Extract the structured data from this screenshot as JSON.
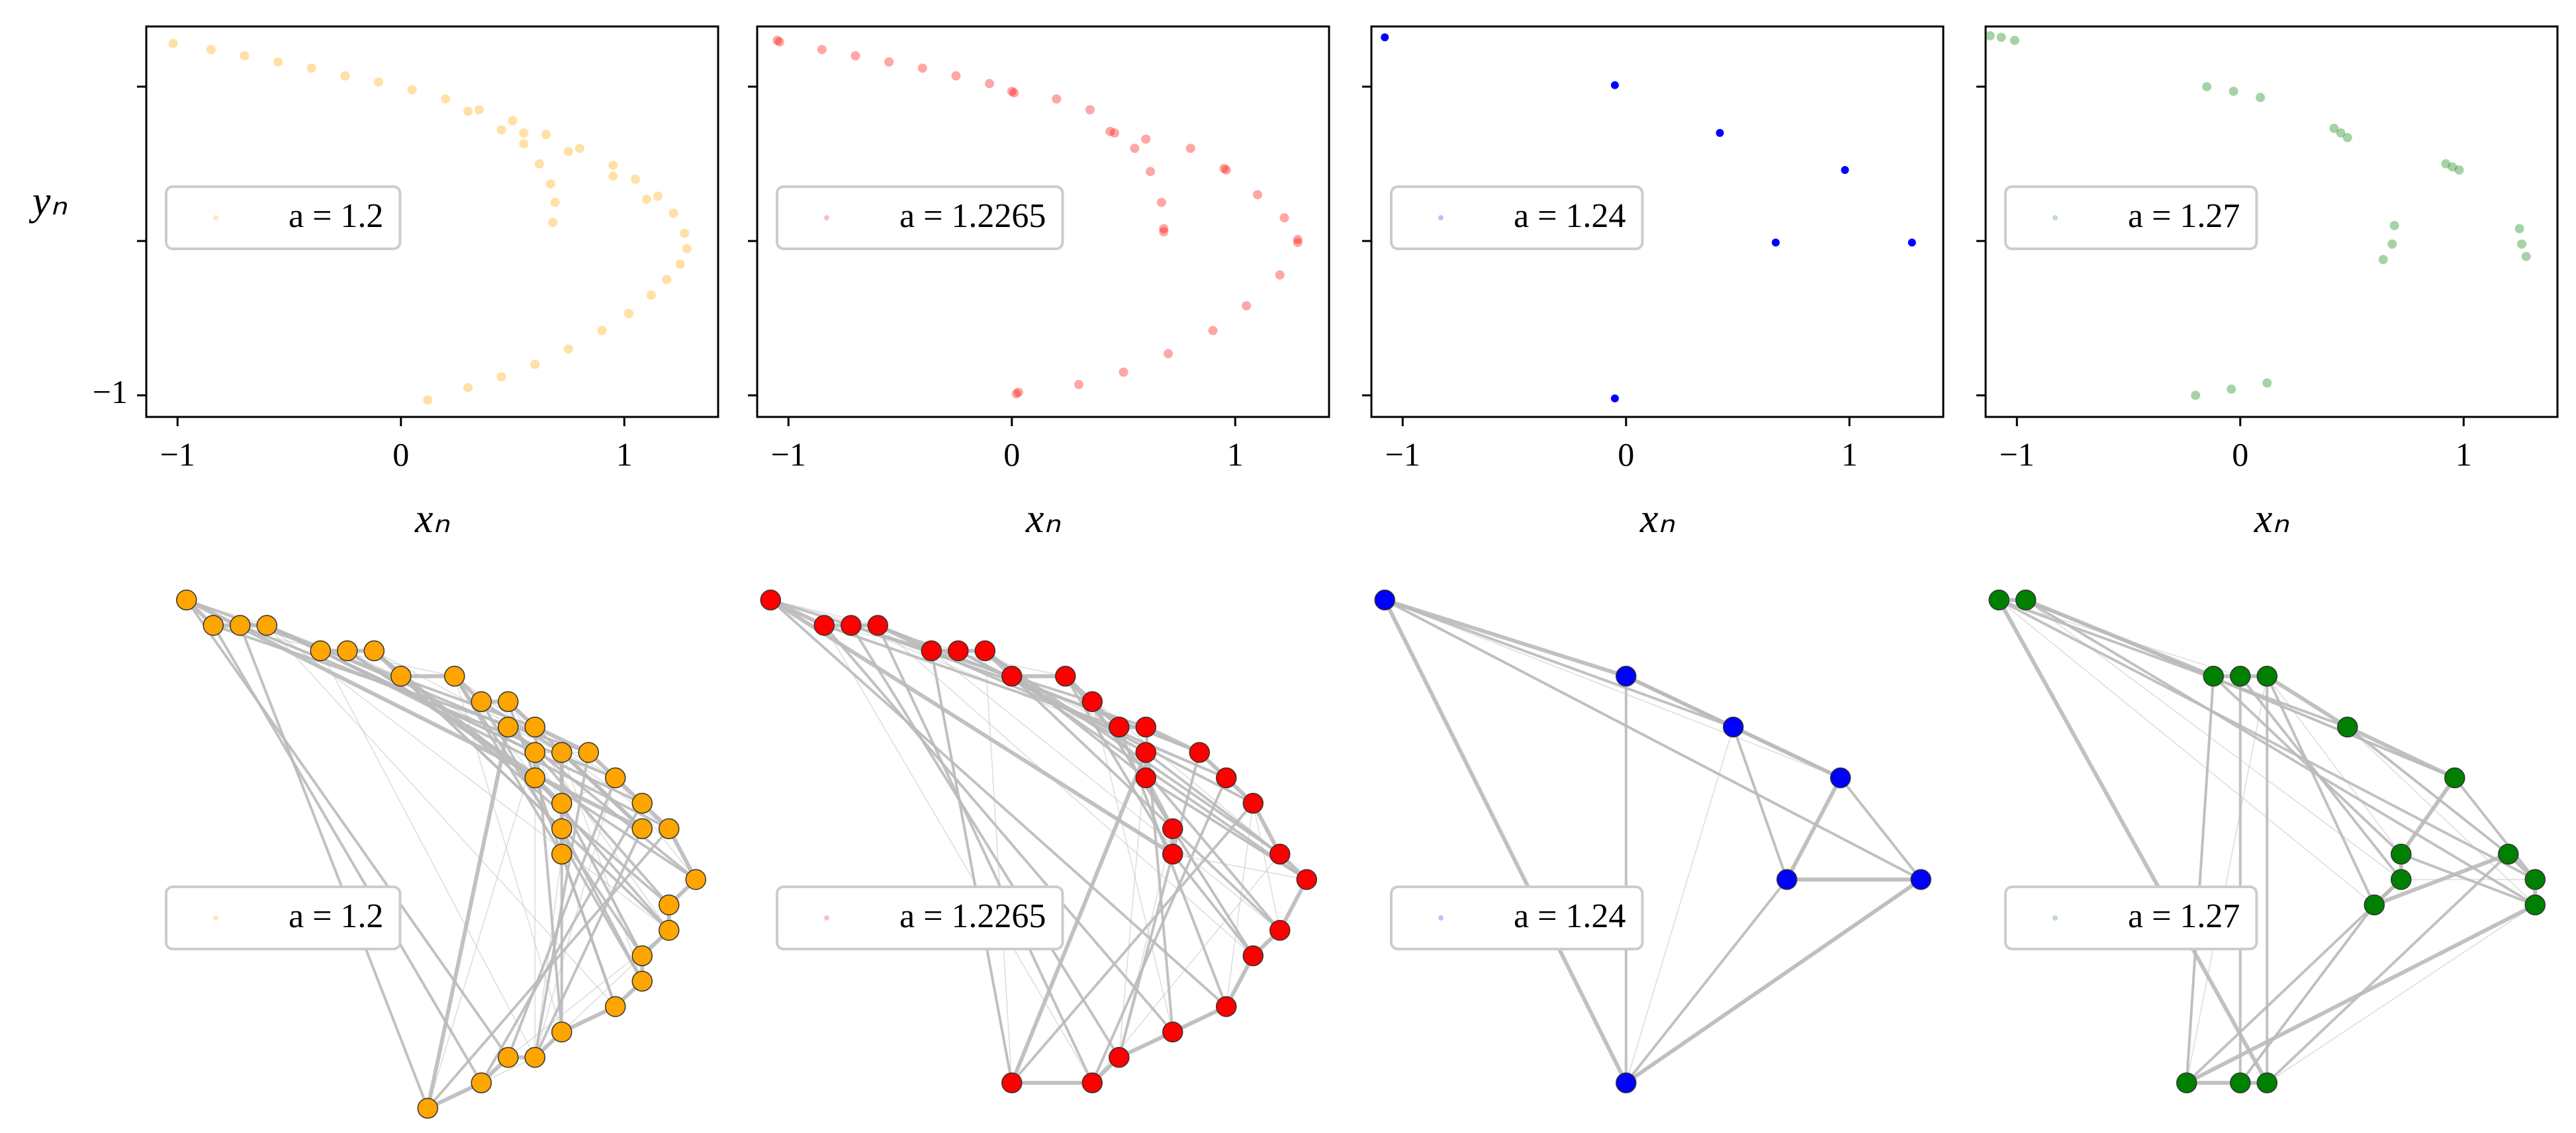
{
  "chart_data": [
    {
      "type": "scatter",
      "xlim": [
        -1.14,
        1.42
      ],
      "ylim": [
        -1.14,
        1.39
      ],
      "xticks": [
        {
          "value": -1,
          "label": "−1"
        },
        0,
        1
      ],
      "yticks": [
        {
          "value": -1,
          "label": "−1"
        },
        0,
        1
      ],
      "xlabel": "xₙ",
      "ylabel": "yₙ",
      "series": [
        {
          "name": "a = 1.2",
          "color": "#ffa500",
          "x": [
            -1.02,
            -0.85,
            -0.7,
            -0.55,
            -0.4,
            -0.25,
            -0.1,
            0.05,
            0.2,
            0.35,
            0.5,
            0.65,
            0.8,
            0.95,
            1.05,
            1.15,
            1.22,
            1.27,
            1.28,
            1.25,
            1.19,
            1.12,
            1.02,
            0.9,
            0.75,
            0.6,
            0.45,
            0.3,
            0.12,
            0.3,
            0.45,
            0.55,
            0.62,
            0.67,
            0.69,
            0.68,
            0.55,
            0.75,
            0.95,
            1.1
          ],
          "y": [
            1.28,
            1.24,
            1.2,
            1.16,
            1.12,
            1.07,
            1.03,
            0.98,
            0.92,
            0.85,
            0.78,
            0.69,
            0.6,
            0.49,
            0.4,
            0.29,
            0.18,
            0.05,
            -0.05,
            -0.15,
            -0.25,
            -0.35,
            -0.47,
            -0.58,
            -0.7,
            -0.8,
            -0.88,
            -0.95,
            -1.03,
            0.84,
            0.72,
            0.63,
            0.5,
            0.37,
            0.25,
            0.12,
            0.7,
            0.58,
            0.42,
            0.27
          ]
        }
      ]
    },
    {
      "type": "scatter",
      "xlim": [
        -1.14,
        1.42
      ],
      "ylim": [
        -1.14,
        1.39
      ],
      "xticks": [
        {
          "value": -1,
          "label": "−1"
        },
        0,
        1
      ],
      "yticks": [
        -1,
        0,
        1
      ],
      "xlabel": "xₙ",
      "series": [
        {
          "name": "a = 1.2265",
          "color": "#ff0000",
          "x": [
            -1.05,
            -1.04,
            -0.85,
            -0.7,
            -0.55,
            -0.4,
            -0.25,
            -0.1,
            0.0,
            0.01,
            0.2,
            0.35,
            0.44,
            0.46,
            0.6,
            0.8,
            0.95,
            0.96,
            1.1,
            1.22,
            1.28,
            1.28,
            1.2,
            1.05,
            0.9,
            0.7,
            0.5,
            0.3,
            0.03,
            0.02,
            0.55,
            0.62,
            0.67,
            0.68,
            0.68
          ],
          "y": [
            1.3,
            1.29,
            1.24,
            1.2,
            1.16,
            1.12,
            1.07,
            1.02,
            0.97,
            0.96,
            0.92,
            0.85,
            0.71,
            0.7,
            0.66,
            0.6,
            0.47,
            0.46,
            0.3,
            0.15,
            0.01,
            -0.01,
            -0.22,
            -0.42,
            -0.58,
            -0.73,
            -0.85,
            -0.93,
            -0.98,
            -0.99,
            0.6,
            0.45,
            0.25,
            0.08,
            0.06
          ]
        }
      ]
    },
    {
      "type": "scatter",
      "xlim": [
        -1.14,
        1.42
      ],
      "ylim": [
        -1.14,
        1.39
      ],
      "xticks": [
        {
          "value": -1,
          "label": "−1"
        },
        0,
        1
      ],
      "yticks": [
        -1,
        0,
        1
      ],
      "xlabel": "xₙ",
      "series": [
        {
          "name": "a = 1.24",
          "color": "#0000ff",
          "x": [
            -1.08,
            -0.05,
            0.42,
            0.98,
            0.67,
            1.28,
            -0.05
          ],
          "y": [
            1.32,
            1.01,
            0.7,
            0.46,
            -0.01,
            -0.01,
            -1.02
          ]
        }
      ]
    },
    {
      "type": "scatter",
      "xlim": [
        -1.14,
        1.42
      ],
      "ylim": [
        -1.14,
        1.39
      ],
      "xticks": [
        {
          "value": -1,
          "label": "−1"
        },
        0,
        1
      ],
      "yticks": [
        -1,
        0,
        1
      ],
      "xlabel": "xₙ",
      "series": [
        {
          "name": "a = 1.27",
          "color": "#008000",
          "x": [
            -1.12,
            -1.07,
            -1.01,
            -0.15,
            -0.03,
            0.09,
            0.42,
            0.45,
            0.48,
            0.92,
            0.95,
            0.98,
            0.69,
            0.68,
            0.64,
            1.25,
            1.26,
            1.28,
            -0.2,
            -0.04,
            0.12
          ],
          "y": [
            1.33,
            1.32,
            1.3,
            1.0,
            0.97,
            0.93,
            0.73,
            0.7,
            0.67,
            0.5,
            0.48,
            0.46,
            0.1,
            -0.02,
            -0.12,
            0.08,
            -0.02,
            -0.1,
            -1.0,
            -0.96,
            -0.92
          ]
        }
      ]
    }
  ]
}
